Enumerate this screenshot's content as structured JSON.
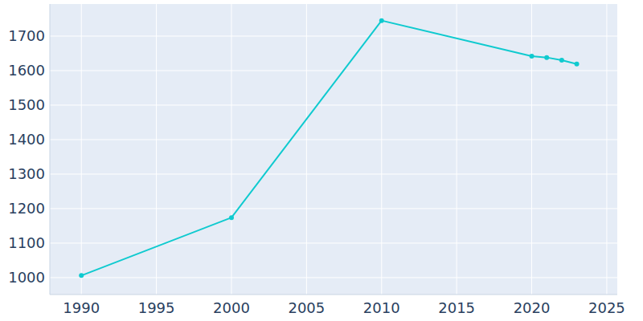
{
  "chart_data": {
    "type": "line",
    "x": [
      1990,
      2000,
      2010,
      2020,
      2021,
      2022,
      2023
    ],
    "values": [
      1006,
      1174,
      1745,
      1642,
      1638,
      1630,
      1619
    ],
    "color": "#0fcacf",
    "marker": "circle",
    "xlim": [
      1987.9,
      2025.7
    ],
    "xticks": [
      1990,
      1995,
      2000,
      2005,
      2010,
      2015,
      2020,
      2025
    ],
    "ylim": [
      951,
      1793
    ],
    "yticks": [
      1000,
      1100,
      1200,
      1300,
      1400,
      1500,
      1600,
      1700
    ],
    "grid": true
  }
}
